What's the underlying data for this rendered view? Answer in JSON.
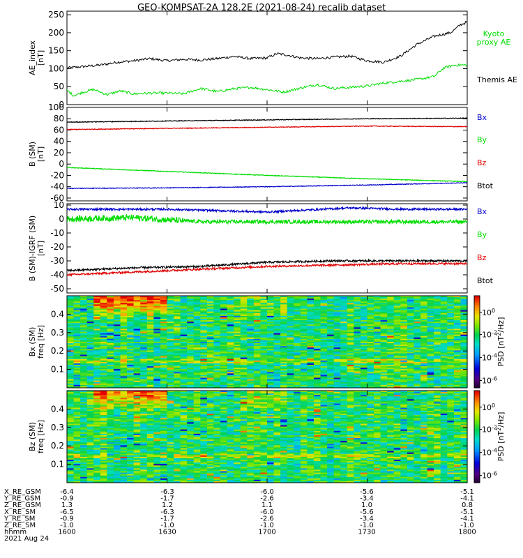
{
  "title": "GEO-KOMPSAT-2A 128.2E (2021-08-24) recalib dataset",
  "colors": {
    "black": "#000000",
    "red": "#e00000",
    "green": "#00dd00",
    "blue": "#0000cc"
  },
  "chart_data": [
    {
      "type": "line",
      "panel": "ae",
      "ylabel": [
        "AE_index",
        "[nT]"
      ],
      "ylim": [
        0,
        260
      ],
      "yticks": [
        0,
        50,
        100,
        150,
        200,
        250
      ],
      "xlim": [
        0,
        120
      ],
      "series": [
        {
          "name": "Themis AE",
          "color": "#000000",
          "x": [
            0,
            5,
            10,
            15,
            20,
            25,
            30,
            35,
            40,
            45,
            50,
            55,
            60,
            63,
            66,
            70,
            75,
            80,
            85,
            90,
            95,
            100,
            105,
            110,
            115,
            118,
            120
          ],
          "y": [
            102,
            106,
            110,
            118,
            122,
            128,
            122,
            126,
            124,
            128,
            134,
            128,
            130,
            142,
            138,
            130,
            128,
            132,
            135,
            122,
            118,
            135,
            168,
            190,
            200,
            222,
            230
          ]
        },
        {
          "name": "Kyoto proxy AE",
          "color": "#00dd00",
          "x": [
            0,
            2,
            5,
            8,
            12,
            16,
            20,
            25,
            30,
            35,
            40,
            42,
            45,
            50,
            55,
            60,
            65,
            70,
            75,
            80,
            85,
            90,
            95,
            100,
            105,
            110,
            113,
            116,
            120
          ],
          "y": [
            40,
            25,
            35,
            42,
            28,
            38,
            30,
            32,
            32,
            30,
            45,
            42,
            36,
            44,
            48,
            42,
            35,
            46,
            56,
            45,
            48,
            52,
            60,
            65,
            70,
            78,
            102,
            110,
            110
          ]
        }
      ]
    },
    {
      "type": "line",
      "panel": "b_sm",
      "ylabel": [
        "B (SM)",
        "[nT]"
      ],
      "ylim": [
        -65,
        100
      ],
      "yticks": [
        -60,
        -40,
        -20,
        0,
        20,
        40,
        60,
        80,
        100
      ],
      "xlim": [
        0,
        120
      ],
      "series": [
        {
          "name": "Bx",
          "color": "#0000cc",
          "x": [
            0,
            30,
            60,
            90,
            120
          ],
          "y": [
            -43,
            -42,
            -40,
            -37,
            -33
          ]
        },
        {
          "name": "By",
          "color": "#00dd00",
          "x": [
            0,
            30,
            60,
            90,
            120
          ],
          "y": [
            -6,
            -13,
            -20,
            -26,
            -31
          ]
        },
        {
          "name": "Bz",
          "color": "#e00000",
          "x": [
            0,
            30,
            60,
            90,
            120
          ],
          "y": [
            61,
            63,
            65,
            67,
            66
          ]
        },
        {
          "name": "Btot",
          "color": "#000000",
          "x": [
            0,
            30,
            60,
            90,
            120
          ],
          "y": [
            74,
            76,
            78,
            80,
            81
          ]
        }
      ]
    },
    {
      "type": "line",
      "panel": "b_minus_igrf",
      "ylabel": [
        "B (SM)-IGRF (SM)",
        "[nT]"
      ],
      "ylim": [
        -53,
        11
      ],
      "yticks": [
        -50,
        -40,
        -30,
        -20,
        -10,
        0,
        10
      ],
      "xlim": [
        0,
        120
      ],
      "series": [
        {
          "name": "Bx",
          "color": "#0000cc",
          "x": [
            0,
            30,
            60,
            85,
            100,
            120
          ],
          "y": [
            7,
            7,
            5,
            8,
            7,
            7
          ]
        },
        {
          "name": "By",
          "color": "#00dd00",
          "x": [
            0,
            20,
            40,
            70,
            100,
            120
          ],
          "y": [
            0,
            1,
            -2,
            -2,
            -2,
            -2
          ]
        },
        {
          "name": "Bz",
          "color": "#e00000",
          "x": [
            0,
            20,
            40,
            60,
            80,
            100,
            120
          ],
          "y": [
            -40,
            -38,
            -36,
            -34,
            -33,
            -32,
            -32
          ]
        },
        {
          "name": "Btot",
          "color": "#000000",
          "x": [
            0,
            20,
            40,
            60,
            80,
            100,
            120
          ],
          "y": [
            -37,
            -35,
            -34,
            -31,
            -30,
            -30,
            -30
          ]
        }
      ]
    },
    {
      "type": "heatmap",
      "panel": "bx_spectrogram",
      "ylabel": [
        "Bx (SM)",
        "freq [Hz]"
      ],
      "ylim": [
        0,
        0.5
      ],
      "yticks": [
        0.1,
        0.2,
        0.3,
        0.4
      ],
      "colorbar": {
        "label": "PSD [nT^2/Hz]",
        "ticks": [
          "10^0",
          "10^-2",
          "10^-4",
          "10^-6"
        ]
      }
    },
    {
      "type": "heatmap",
      "panel": "bz_spectrogram",
      "ylabel": [
        "Bz (SM)",
        "freq [Hz]"
      ],
      "ylim": [
        0,
        0.5
      ],
      "yticks": [
        0.1,
        0.2,
        0.3,
        0.4
      ],
      "colorbar": {
        "label": "PSD [nT^2/Hz]",
        "ticks": [
          "10^0",
          "10^-2",
          "10^-4",
          "10^-6"
        ]
      }
    }
  ],
  "ephemeris": {
    "rows": [
      {
        "label": "X_RE_GSM",
        "values": [
          "-6.4",
          "-6.3",
          "-6.0",
          "-5.6",
          "-5.1"
        ]
      },
      {
        "label": "Y_RE_GSM",
        "values": [
          "-0.9",
          "-1.7",
          "-2.6",
          "-3.4",
          "-4.1"
        ]
      },
      {
        "label": "Z_RE_GSM",
        "values": [
          "1.3",
          "1.2",
          "1.1",
          "1.0",
          "0.8"
        ]
      },
      {
        "label": "X_RE_SM",
        "values": [
          "-6.5",
          "-6.3",
          "-6.0",
          "-5.6",
          "-5.1"
        ]
      },
      {
        "label": "Y_RE_SM",
        "values": [
          "-0.9",
          "-1.7",
          "-2.6",
          "-3.4",
          "-4.1"
        ]
      },
      {
        "label": "Z_RE_SM",
        "values": [
          "-1.0",
          "-1.0",
          "-1.0",
          "-1.0",
          "-1.0"
        ]
      },
      {
        "label": "hhmm",
        "values": [
          "1600",
          "1630",
          "1700",
          "1730",
          "1800"
        ]
      }
    ],
    "date": "2021 Aug 24"
  }
}
